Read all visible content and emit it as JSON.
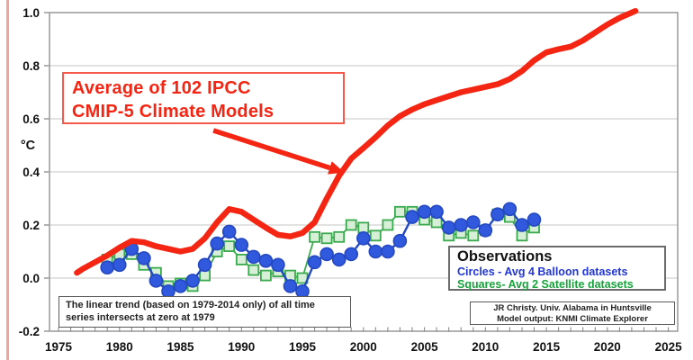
{
  "page": {
    "background": "#ffffff",
    "slide_edge_color": "#f1a39c"
  },
  "annotation": {
    "line1": "Average of 102 IPCC",
    "line2": "CMIP-5 Climate Models",
    "color": "#f42613",
    "border_color": "#f4594a"
  },
  "trend_note": {
    "line1": "The linear trend (based on 1979-2014 only) of all time",
    "line2": "series intersects at zero at 1979"
  },
  "legend": {
    "title": "Observations",
    "balloon_label": "Circles - Avg 4 Balloon datasets",
    "satellite_label": "Squares- Avg 2 Satellite datasets",
    "balloon_color": "#2136d4",
    "satellite_color": "#17a33b"
  },
  "credit": {
    "line1": "JR Christy. Univ. Alabama in Huntsville",
    "line2": "Model output: KNMI Climate Explorer"
  },
  "colors": {
    "model_red": "#f42613",
    "balloon_line": "#2448c2",
    "balloon_fill": "#3059dd",
    "satellite_line": "#3aaa4e",
    "satellite_fill": "#d7efd7",
    "grid": "#c5c5c5",
    "plot_border": "#9e9e9e",
    "tick": "#7f7f7f",
    "axis_text": "#111111"
  },
  "chart_data": {
    "type": "line",
    "title": "",
    "xlabel": "",
    "ylabel": "°C",
    "xlim": [
      1974.26,
      2025.77
    ],
    "ylim": [
      -0.2,
      1.0
    ],
    "xticks": [
      1975,
      1980,
      1985,
      1990,
      1995,
      2000,
      2005,
      2010,
      2015,
      2020,
      2025
    ],
    "yticks": [
      -0.2,
      0.0,
      0.2,
      0.4,
      0.6,
      0.8,
      1.0
    ],
    "minor_xtick_step": 1,
    "grid": "horizontal",
    "legend_position": "inside-lower-right",
    "series": [
      {
        "name": "Average of 102 IPCC CMIP-5 Climate Models",
        "marker": "none",
        "style": "thick-smooth-line",
        "x": [
          1976.5,
          1977,
          1978,
          1979,
          1980,
          1981,
          1982,
          1983,
          1984,
          1985,
          1986,
          1987,
          1988,
          1989,
          1990,
          1991,
          1992,
          1993,
          1994,
          1995,
          1996,
          1997,
          1998,
          1999,
          2000,
          2001,
          2002,
          2003,
          2004,
          2005,
          2006,
          2007,
          2008,
          2009,
          2010,
          2011,
          2012,
          2013,
          2014,
          2015,
          2016,
          2017,
          2018,
          2019,
          2020,
          2021,
          2022,
          2022.3
        ],
        "y": [
          0.02,
          0.035,
          0.06,
          0.085,
          0.115,
          0.14,
          0.135,
          0.12,
          0.11,
          0.1,
          0.11,
          0.15,
          0.21,
          0.26,
          0.25,
          0.22,
          0.19,
          0.163,
          0.157,
          0.17,
          0.21,
          0.3,
          0.385,
          0.45,
          0.49,
          0.53,
          0.575,
          0.61,
          0.635,
          0.655,
          0.67,
          0.685,
          0.7,
          0.71,
          0.72,
          0.73,
          0.75,
          0.78,
          0.82,
          0.85,
          0.862,
          0.872,
          0.895,
          0.925,
          0.955,
          0.98,
          1.0,
          1.006
        ]
      },
      {
        "name": "Avg 4 Balloon datasets",
        "marker": "circle",
        "x": [
          1979,
          1980,
          1981,
          1982,
          1983,
          1984,
          1985,
          1986,
          1987,
          1988,
          1989,
          1990,
          1991,
          1992,
          1993,
          1994,
          1995,
          1996,
          1997,
          1998,
          1999,
          2000,
          2001,
          2002,
          2003,
          2004,
          2005,
          2006,
          2007,
          2008,
          2009,
          2010,
          2011,
          2012,
          2013,
          2014
        ],
        "y": [
          0.04,
          0.05,
          0.11,
          0.075,
          -0.01,
          -0.05,
          -0.03,
          -0.01,
          0.05,
          0.13,
          0.175,
          0.125,
          0.08,
          0.065,
          0.05,
          -0.03,
          -0.05,
          0.06,
          0.09,
          0.07,
          0.09,
          0.15,
          0.1,
          0.1,
          0.14,
          0.23,
          0.25,
          0.25,
          0.19,
          0.2,
          0.21,
          0.18,
          0.24,
          0.26,
          0.2,
          0.22
        ]
      },
      {
        "name": "Avg 2 Satellite datasets",
        "marker": "square",
        "x": [
          1979,
          1980,
          1981,
          1982,
          1983,
          1984,
          1985,
          1986,
          1987,
          1988,
          1989,
          1990,
          1991,
          1992,
          1993,
          1994,
          1995,
          1996,
          1997,
          1998,
          1999,
          2000,
          2001,
          2002,
          2003,
          2004,
          2005,
          2006,
          2007,
          2008,
          2009,
          2010,
          2011,
          2012,
          2013,
          2014
        ],
        "y": [
          0.07,
          0.09,
          0.09,
          0.05,
          0.02,
          -0.03,
          -0.02,
          -0.03,
          0.01,
          0.1,
          0.12,
          0.07,
          0.03,
          0.01,
          0.025,
          0.01,
          0.0,
          0.155,
          0.15,
          0.155,
          0.2,
          0.19,
          0.16,
          0.2,
          0.25,
          0.25,
          0.22,
          0.21,
          0.16,
          0.17,
          0.16,
          0.18,
          0.24,
          0.23,
          0.16,
          0.19
        ]
      }
    ],
    "annotations": {
      "arrow": {
        "from_x": 1987.7,
        "from_y": 0.556,
        "to_x": 1997.8,
        "to_y": 0.407
      }
    }
  }
}
